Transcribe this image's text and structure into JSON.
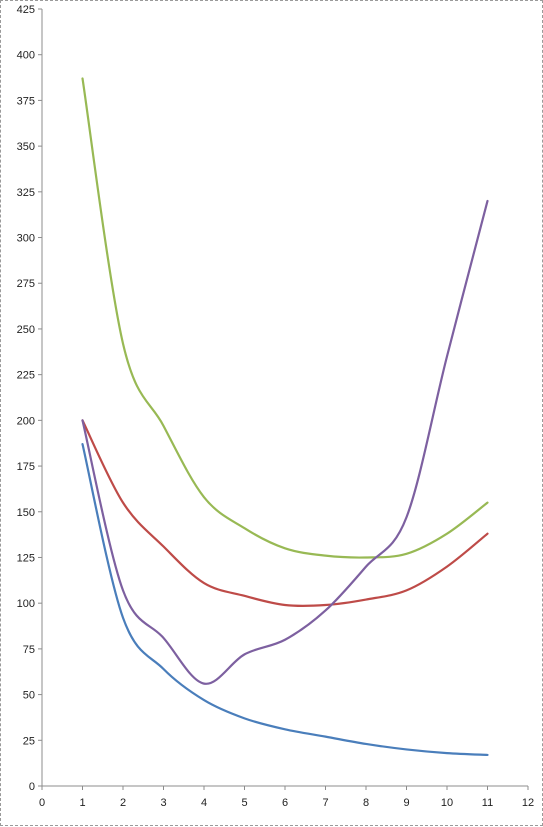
{
  "chart_data": {
    "type": "line",
    "title": "",
    "xlabel": "",
    "ylabel": "",
    "xlim": [
      0,
      12
    ],
    "ylim": [
      0,
      425
    ],
    "x_ticks": [
      "0",
      "1",
      "2",
      "3",
      "4",
      "5",
      "6",
      "7",
      "8",
      "9",
      "10",
      "11",
      "12"
    ],
    "y_ticks": [
      "0",
      "25",
      "50",
      "75",
      "100",
      "125",
      "150",
      "175",
      "200",
      "225",
      "250",
      "275",
      "300",
      "325",
      "350",
      "375",
      "400",
      "425"
    ],
    "grid": false,
    "legend": "none",
    "smooth": true,
    "series": [
      {
        "color": "#4a7ebb",
        "x": [
          1,
          2,
          3,
          4,
          5,
          6,
          7,
          8,
          9,
          10,
          11
        ],
        "y": [
          187,
          92,
          64,
          47,
          37,
          31,
          27,
          23,
          20,
          18,
          17
        ]
      },
      {
        "color": "#be4b48",
        "x": [
          1,
          2,
          3,
          4,
          5,
          6,
          7,
          8,
          9,
          10,
          11
        ],
        "y": [
          200,
          155,
          131,
          111,
          104,
          99,
          99,
          102,
          107,
          120,
          138
        ]
      },
      {
        "color": "#98b954",
        "x": [
          1,
          2,
          3,
          4,
          5,
          6,
          7,
          8,
          9,
          10,
          11
        ],
        "y": [
          387,
          242,
          197,
          158,
          141,
          130,
          126,
          125,
          127,
          138,
          155
        ]
      },
      {
        "color": "#7d60a0",
        "x": [
          1,
          2,
          3,
          4,
          5,
          6,
          7,
          8,
          9,
          10,
          11
        ],
        "y": [
          200,
          107,
          81,
          56,
          72,
          80,
          96,
          120,
          147,
          235,
          320
        ]
      }
    ]
  }
}
